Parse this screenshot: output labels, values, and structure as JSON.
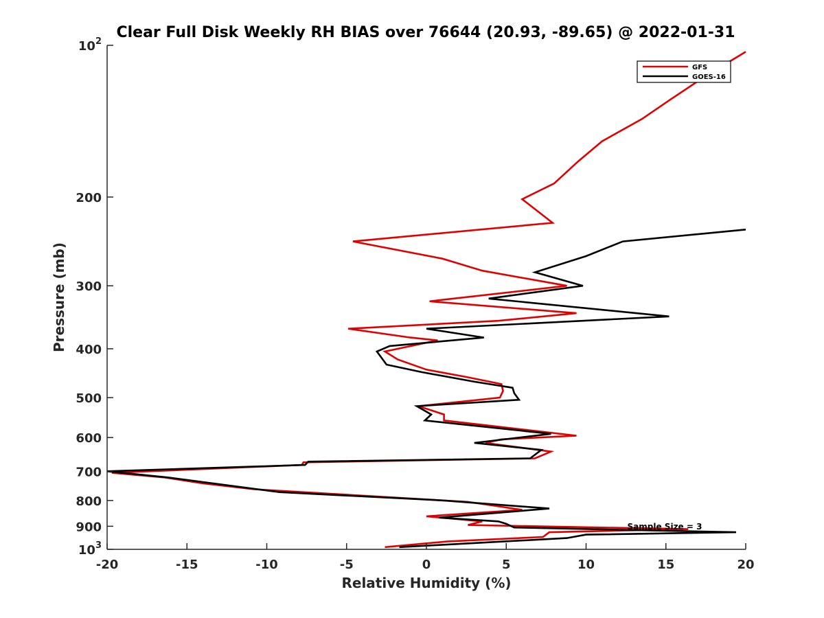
{
  "chart_data": {
    "type": "line",
    "title": "Clear Full Disk Weekly RH BIAS over 76644 (20.93, -89.65) @ 2022-01-31",
    "xlabel": "Relative Humidity (%)",
    "ylabel": "Pressure (mb)",
    "xlim": [
      -20,
      20
    ],
    "ylim": [
      100,
      1000
    ],
    "yscale": "log",
    "yreversed": true,
    "x_ticks": [
      -20,
      -15,
      -10,
      -5,
      0,
      5,
      10,
      15,
      20
    ],
    "x_tick_labels": [
      "-20",
      "-15",
      "-10",
      "-5",
      "0",
      "5",
      "10",
      "15",
      "20"
    ],
    "y_ticks": [
      {
        "value": 200,
        "label": "200"
      },
      {
        "value": 300,
        "label": "300"
      },
      {
        "value": 400,
        "label": "400"
      },
      {
        "value": 500,
        "label": "500"
      },
      {
        "value": 600,
        "label": "600"
      },
      {
        "value": 700,
        "label": "700"
      },
      {
        "value": 800,
        "label": "800"
      },
      {
        "value": 900,
        "label": "900"
      }
    ],
    "y_pow_ticks": [
      {
        "value": 100,
        "base": "10",
        "exp": "2"
      },
      {
        "value": 1000,
        "base": "10",
        "exp": "3"
      }
    ],
    "legend_position": "top-right",
    "annotation": "Sample Size = 3",
    "series": [
      {
        "name": "GFS",
        "color": "#e00000",
        "points": [
          [
            20.0,
            103
          ],
          [
            17.5,
            115
          ],
          [
            15.3,
            128
          ],
          [
            13.5,
            140
          ],
          [
            11.0,
            155
          ],
          [
            9.5,
            170
          ],
          [
            8.0,
            188
          ],
          [
            6.0,
            202
          ],
          [
            7.9,
            225
          ],
          [
            -4.6,
            245
          ],
          [
            1.0,
            265
          ],
          [
            3.5,
            280
          ],
          [
            8.8,
            300
          ],
          [
            0.2,
            322
          ],
          [
            9.4,
            340
          ],
          [
            4.5,
            352
          ],
          [
            -4.9,
            365
          ],
          [
            -1.0,
            380
          ],
          [
            0.7,
            385
          ],
          [
            -2.6,
            405
          ],
          [
            -1.8,
            420
          ],
          [
            0.0,
            440
          ],
          [
            2.5,
            455
          ],
          [
            4.7,
            470
          ],
          [
            4.8,
            485
          ],
          [
            4.6,
            500
          ],
          [
            -0.5,
            520
          ],
          [
            1.1,
            540
          ],
          [
            1.1,
            555
          ],
          [
            9.4,
            595
          ],
          [
            4.7,
            605
          ],
          [
            3.7,
            615
          ],
          [
            7.8,
            640
          ],
          [
            6.8,
            660
          ],
          [
            -7.7,
            672
          ],
          [
            -7.8,
            680
          ],
          [
            -19.7,
            705
          ],
          [
            -16.4,
            720
          ],
          [
            -14.0,
            740
          ],
          [
            -10.8,
            760
          ],
          [
            2.6,
            805
          ],
          [
            6.0,
            835
          ],
          [
            0.0,
            860
          ],
          [
            3.5,
            880
          ],
          [
            2.6,
            895
          ],
          [
            16.4,
            912
          ],
          [
            7.7,
            925
          ],
          [
            7.3,
            945
          ],
          [
            1.3,
            965
          ],
          [
            -2.6,
            990
          ]
        ]
      },
      {
        "name": "GOES-16",
        "color": "#000000",
        "points": [
          [
            20.0,
            232
          ],
          [
            12.3,
            245
          ],
          [
            10.0,
            262
          ],
          [
            6.8,
            282
          ],
          [
            9.8,
            300
          ],
          [
            3.9,
            318
          ],
          [
            15.2,
            345
          ],
          [
            0.0,
            365
          ],
          [
            3.6,
            380
          ],
          [
            -2.3,
            395
          ],
          [
            -3.1,
            405
          ],
          [
            -2.5,
            430
          ],
          [
            -0.3,
            445
          ],
          [
            3.0,
            465
          ],
          [
            5.4,
            478
          ],
          [
            5.5,
            490
          ],
          [
            5.8,
            505
          ],
          [
            -0.6,
            520
          ],
          [
            0.3,
            540
          ],
          [
            -0.1,
            555
          ],
          [
            7.8,
            590
          ],
          [
            3.0,
            615
          ],
          [
            7.2,
            635
          ],
          [
            6.5,
            660
          ],
          [
            -7.4,
            670
          ],
          [
            -7.6,
            680
          ],
          [
            -20.0,
            700
          ],
          [
            -16.2,
            720
          ],
          [
            -9.2,
            770
          ],
          [
            1.1,
            800
          ],
          [
            7.7,
            830
          ],
          [
            0.8,
            865
          ],
          [
            4.5,
            880
          ],
          [
            5.0,
            890
          ],
          [
            5.5,
            905
          ],
          [
            16.0,
            920
          ],
          [
            19.4,
            925
          ],
          [
            10.0,
            935
          ],
          [
            8.8,
            950
          ],
          [
            -1.7,
            990
          ]
        ]
      }
    ]
  }
}
